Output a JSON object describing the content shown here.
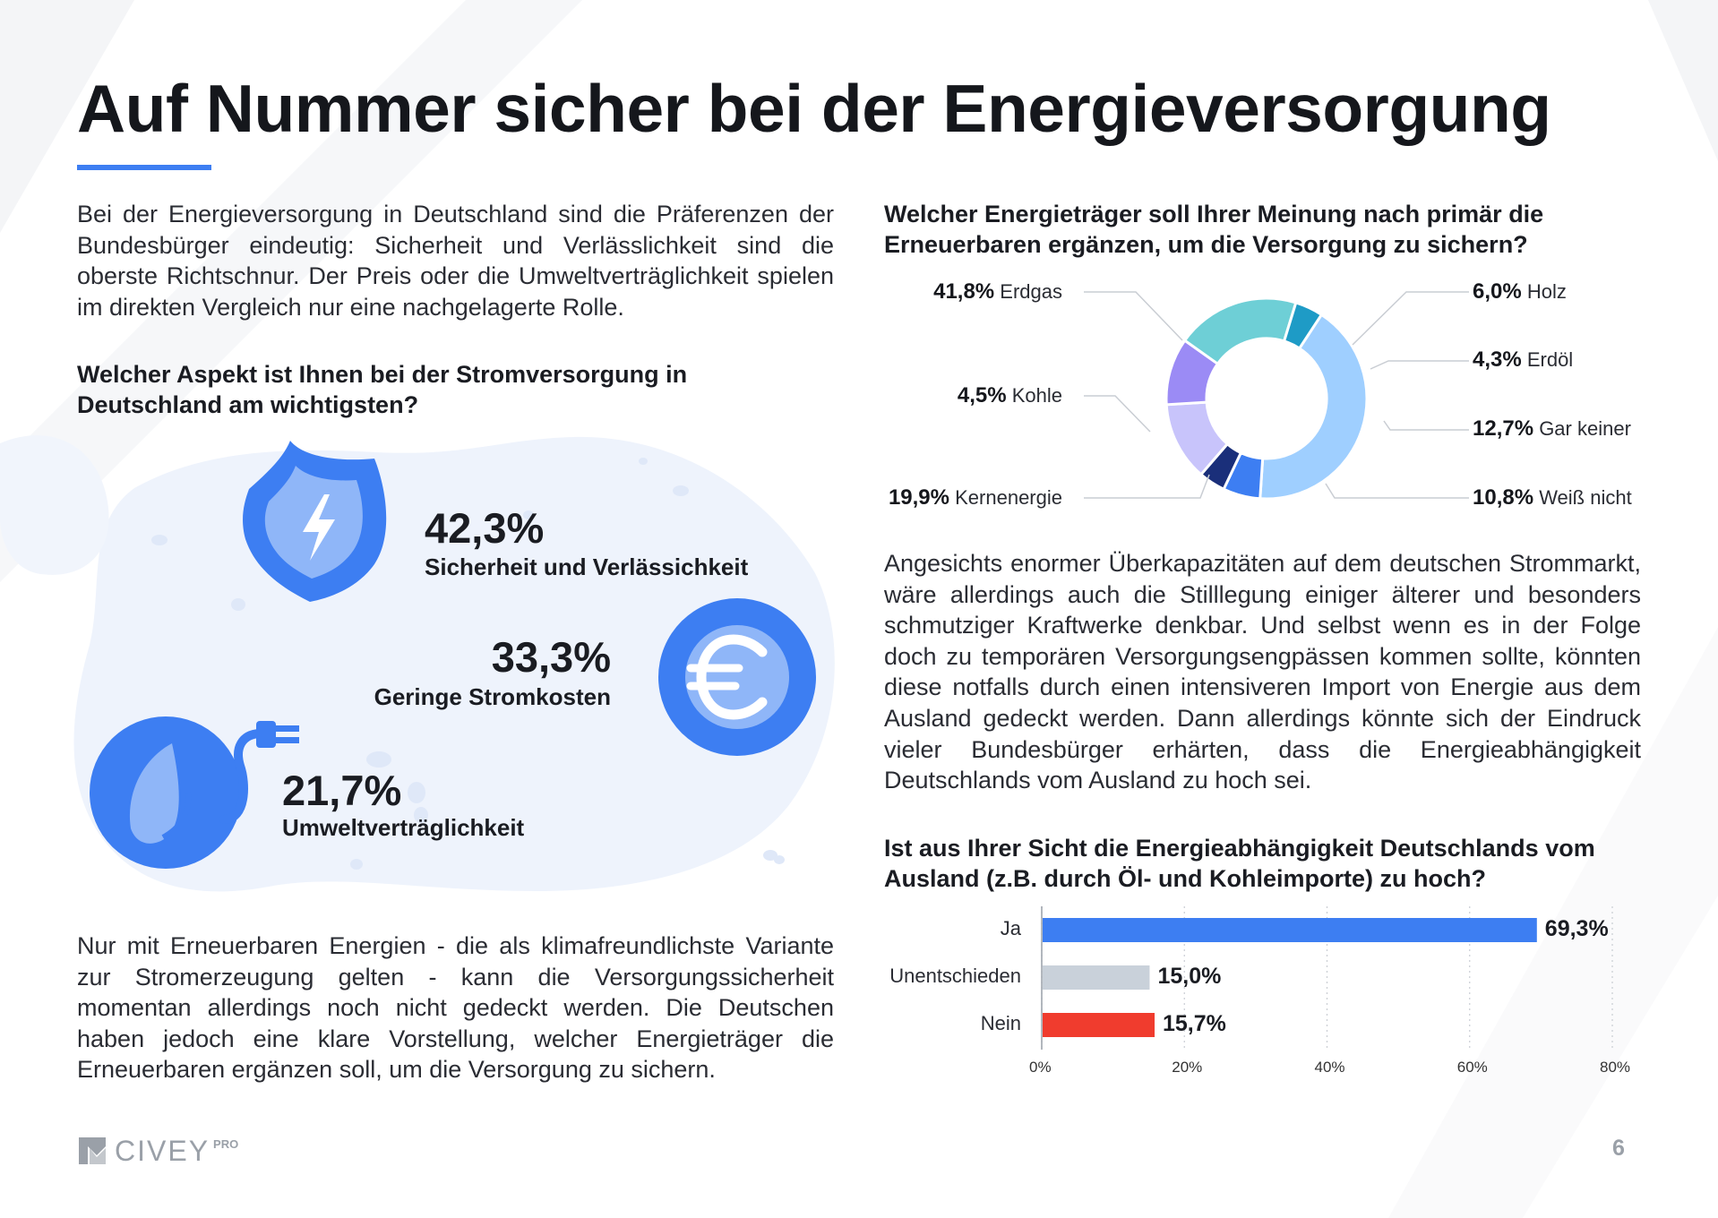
{
  "title": "Auf Nummer sicher bei der Energieversorgung",
  "intro": "Bei der Energieversorgung in Deutschland sind die Präferenzen der Bundesbürger eindeutig: Sicherheit und Verlässlichkeit sind die oberste Richtschnur. Der Preis oder die Umweltverträglichkeit spielen im direkten Vergleich nur eine nachgelagerte Rolle.",
  "q1": "Welcher Aspekt ist Ihnen bei der Stromversorgung in Deutschland am wichtigsten?",
  "aspects": [
    {
      "value": "42,3%",
      "label": "Sicherheit und Verlässichkeit"
    },
    {
      "value": "33,3%",
      "label": "Geringe Stromkosten"
    },
    {
      "value": "21,7%",
      "label": "Umweltverträglichkeit"
    }
  ],
  "para2": "Nur mit Erneuerbaren Energien - die als klimafreundlichste Variante zur Stromerzeugung gelten - kann die Versorgungssicherheit momentan allerdings noch nicht gedeckt werden. Die Deutschen haben jedoch eine klare Vorstellung, welcher Energieträger die Erneuerbaren ergänzen soll, um die Versorgung zu sichern.",
  "q2": "Welcher Energieträger soll Ihrer Meinung nach primär die Erneuerbaren ergänzen, um die Versorgung zu sichern?",
  "para3": "Angesichts enormer Überkapazitäten auf dem deutschen Strommarkt, wäre allerdings auch die Stilllegung einiger älterer und besonders schmutziger Kraftwerke denkbar. Und selbst wenn es in der Folge doch zu temporären Versorgungsengpässen kommen sollte, könnten diese notfalls durch einen intensiveren Import von Energie aus dem Ausland gedeckt werden. Dann allerdings könnte sich der Eindruck vieler Bundesbürger erhärten, dass die Energieabhängigkeit Deutschlands vom Ausland zu hoch sei.",
  "q3": "Ist aus Ihrer Sicht die Energieabhängigkeit Deutschlands vom Ausland (z.B. durch Öl- und Kohleimporte) zu hoch?",
  "logo": {
    "name": "CIVEY",
    "suffix": "PRO"
  },
  "page_number": "6",
  "colors": {
    "accent": "#3d7ef2",
    "blob": "#eef3fc"
  },
  "chart_data": [
    {
      "type": "pie",
      "title": "Welcher Energieträger soll Ihrer Meinung nach primär die Erneuerbaren ergänzen, um die Versorgung zu sichern?",
      "slices": [
        {
          "label": "Erdgas",
          "value": 41.8,
          "text": "41,8%",
          "color": "#9fcfff"
        },
        {
          "label": "Holz",
          "value": 6.0,
          "text": "6,0%",
          "color": "#3d7ef2"
        },
        {
          "label": "Erdöl",
          "value": 4.3,
          "text": "4,3%",
          "color": "#1a2f7a"
        },
        {
          "label": "Gar keiner",
          "value": 12.7,
          "text": "12,7%",
          "color": "#c8c4fb"
        },
        {
          "label": "Weiß nicht",
          "value": 10.8,
          "text": "10,8%",
          "color": "#9b8bf5"
        },
        {
          "label": "Kernenergie",
          "value": 19.9,
          "text": "19,9%",
          "color": "#6ecfd6"
        },
        {
          "label": "Kohle",
          "value": 4.5,
          "text": "4,5%",
          "color": "#1e9bc6"
        }
      ]
    },
    {
      "type": "bar",
      "orientation": "horizontal",
      "title": "Ist aus Ihrer Sicht die Energieabhängigkeit Deutschlands vom Ausland (z.B. durch Öl- und Kohleimporte) zu hoch?",
      "categories": [
        "Ja",
        "Unentschieden",
        "Nein"
      ],
      "values": [
        69.3,
        15.0,
        15.7
      ],
      "value_labels": [
        "69,3%",
        "15,0%",
        "15,7%"
      ],
      "colors": [
        "#3d7ef2",
        "#c9d1da",
        "#f03c2e"
      ],
      "xlim": [
        0,
        80
      ],
      "xticks": [
        "0%",
        "20%",
        "40%",
        "60%",
        "80%"
      ],
      "grid": true
    }
  ]
}
